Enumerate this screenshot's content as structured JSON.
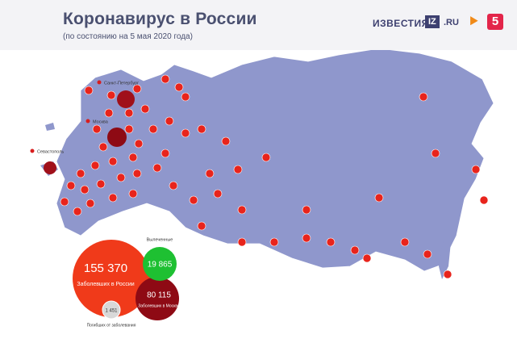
{
  "header": {
    "title": "Коронавирус в России",
    "subtitle": "(по состоянию на 5 мая 2020 года)",
    "logos": [
      "ИЗВЕСТИЯ",
      "IZ",
      ".RU",
      "5"
    ]
  },
  "cities": [
    "Санкт-Петербург",
    "Москва",
    "Севастополь"
  ],
  "stats": {
    "total": {
      "value": "155 370",
      "label": "Заболевших в России"
    },
    "recovered": {
      "value": "19 865",
      "label": "Вылеченные"
    },
    "moscow": {
      "value": "80 115",
      "label": "Заболевших в Москве"
    },
    "deaths": {
      "value": "1 451",
      "label": "Погибших от заболевания"
    }
  }
}
